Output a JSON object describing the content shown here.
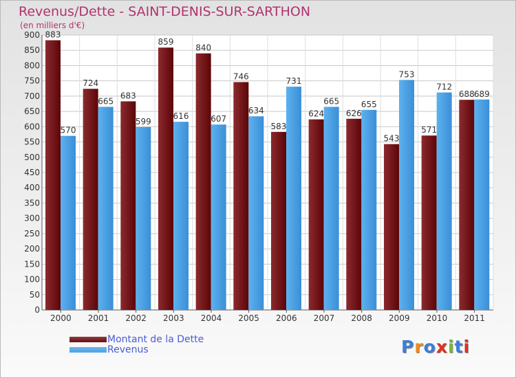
{
  "title": "Revenus/Dette - SAINT-DENIS-SUR-SARTHON",
  "subtitle": "(en milliers d'€)",
  "legend": [
    {
      "label": "Montant de la Dette",
      "color": "#6e0e12"
    },
    {
      "label": "Revenus",
      "color": "#4ba3e8"
    }
  ],
  "logo": {
    "text": "Proxiti",
    "letter_colors": [
      "#3c7fd8",
      "#f08a1c",
      "#3c7fd8",
      "#e0301e",
      "#7ab82e",
      "#3c7fd8",
      "#e0301e"
    ]
  },
  "chart_data": {
    "type": "bar",
    "categories": [
      "2000",
      "2001",
      "2002",
      "2003",
      "2004",
      "2005",
      "2006",
      "2007",
      "2008",
      "2009",
      "2010",
      "2011"
    ],
    "series": [
      {
        "name": "Montant de la Dette",
        "color": "#6e0e12",
        "values": [
          883,
          724,
          683,
          859,
          840,
          746,
          583,
          624,
          626,
          543,
          571,
          688
        ]
      },
      {
        "name": "Revenus",
        "color": "#4ba3e8",
        "values": [
          570,
          665,
          599,
          616,
          607,
          634,
          731,
          665,
          655,
          753,
          712,
          689
        ]
      }
    ],
    "ylim": [
      0,
      900
    ],
    "ytick_step": 50,
    "grid": true
  }
}
